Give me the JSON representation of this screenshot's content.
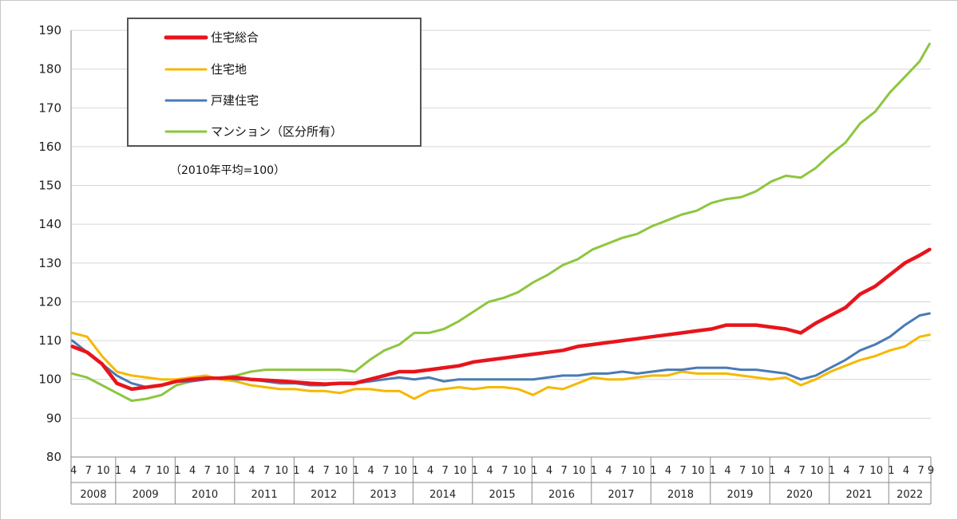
{
  "chart_data": {
    "type": "line",
    "note": "（2010年平均=100）",
    "ylim": [
      80,
      190
    ],
    "yticks": [
      80,
      90,
      100,
      110,
      120,
      130,
      140,
      150,
      160,
      170,
      180,
      190
    ],
    "x_month_labels": [
      "1",
      "4",
      "7",
      "10"
    ],
    "x_first_labels": [
      "4",
      "7",
      "10"
    ],
    "x_last_labels": [
      "1",
      "4",
      "7",
      "9"
    ],
    "years": [
      "2008",
      "2009",
      "2010",
      "2011",
      "2012",
      "2013",
      "2014",
      "2015",
      "2016",
      "2017",
      "2018",
      "2019",
      "2020",
      "2021",
      "2022"
    ],
    "x_start": "2008-04",
    "x_end": "2022-09",
    "grid": true,
    "legend_position": "top-left",
    "series": [
      {
        "name": "住宅総合",
        "color": "#e8141b",
        "points": [
          [
            "2008-04",
            108.5
          ],
          [
            "2008-07",
            107
          ],
          [
            "2008-10",
            104
          ],
          [
            "2009-01",
            99
          ],
          [
            "2009-04",
            97.5
          ],
          [
            "2009-07",
            98
          ],
          [
            "2009-10",
            98.5
          ],
          [
            "2010-01",
            99.5
          ],
          [
            "2010-04",
            100
          ],
          [
            "2010-07",
            100.3
          ],
          [
            "2010-10",
            100.3
          ],
          [
            "2011-01",
            100.5
          ],
          [
            "2011-04",
            100
          ],
          [
            "2011-07",
            99.8
          ],
          [
            "2011-10",
            99.6
          ],
          [
            "2012-01",
            99.3
          ],
          [
            "2012-04",
            99
          ],
          [
            "2012-07",
            98.8
          ],
          [
            "2012-10",
            99
          ],
          [
            "2013-01",
            99
          ],
          [
            "2013-04",
            100
          ],
          [
            "2013-07",
            101
          ],
          [
            "2013-10",
            102
          ],
          [
            "2014-01",
            102
          ],
          [
            "2014-04",
            102.5
          ],
          [
            "2014-07",
            103
          ],
          [
            "2014-10",
            103.5
          ],
          [
            "2015-01",
            104.5
          ],
          [
            "2015-04",
            105
          ],
          [
            "2015-07",
            105.5
          ],
          [
            "2015-10",
            106
          ],
          [
            "2016-01",
            106.5
          ],
          [
            "2016-04",
            107
          ],
          [
            "2016-07",
            107.5
          ],
          [
            "2016-10",
            108.5
          ],
          [
            "2017-01",
            109
          ],
          [
            "2017-04",
            109.5
          ],
          [
            "2017-07",
            110
          ],
          [
            "2017-10",
            110.5
          ],
          [
            "2018-01",
            111
          ],
          [
            "2018-04",
            111.5
          ],
          [
            "2018-07",
            112
          ],
          [
            "2018-10",
            112.5
          ],
          [
            "2019-01",
            113
          ],
          [
            "2019-04",
            114
          ],
          [
            "2019-07",
            114
          ],
          [
            "2019-10",
            114
          ],
          [
            "2020-01",
            113.5
          ],
          [
            "2020-04",
            113
          ],
          [
            "2020-07",
            112
          ],
          [
            "2020-10",
            114.5
          ],
          [
            "2021-01",
            116.5
          ],
          [
            "2021-04",
            118.5
          ],
          [
            "2021-07",
            122
          ],
          [
            "2021-10",
            124
          ],
          [
            "2022-01",
            127
          ],
          [
            "2022-04",
            130
          ],
          [
            "2022-07",
            132
          ],
          [
            "2022-09",
            133.5
          ]
        ]
      },
      {
        "name": "住宅地",
        "color": "#f5b800",
        "points": [
          [
            "2008-04",
            112
          ],
          [
            "2008-07",
            111
          ],
          [
            "2008-10",
            106
          ],
          [
            "2009-01",
            102
          ],
          [
            "2009-04",
            101
          ],
          [
            "2009-07",
            100.5
          ],
          [
            "2009-10",
            100
          ],
          [
            "2010-01",
            100
          ],
          [
            "2010-04",
            100.5
          ],
          [
            "2010-07",
            101
          ],
          [
            "2010-10",
            100
          ],
          [
            "2011-01",
            99.5
          ],
          [
            "2011-04",
            98.5
          ],
          [
            "2011-07",
            98
          ],
          [
            "2011-10",
            97.5
          ],
          [
            "2012-01",
            97.5
          ],
          [
            "2012-04",
            97
          ],
          [
            "2012-07",
            97
          ],
          [
            "2012-10",
            96.5
          ],
          [
            "2013-01",
            97.5
          ],
          [
            "2013-04",
            97.5
          ],
          [
            "2013-07",
            97
          ],
          [
            "2013-10",
            97
          ],
          [
            "2014-01",
            95
          ],
          [
            "2014-04",
            97
          ],
          [
            "2014-07",
            97.5
          ],
          [
            "2014-10",
            98
          ],
          [
            "2015-01",
            97.5
          ],
          [
            "2015-04",
            98
          ],
          [
            "2015-07",
            98
          ],
          [
            "2015-10",
            97.5
          ],
          [
            "2016-01",
            96
          ],
          [
            "2016-04",
            98
          ],
          [
            "2016-07",
            97.5
          ],
          [
            "2016-10",
            99
          ],
          [
            "2017-01",
            100.5
          ],
          [
            "2017-04",
            100
          ],
          [
            "2017-07",
            100
          ],
          [
            "2017-10",
            100.5
          ],
          [
            "2018-01",
            101
          ],
          [
            "2018-04",
            101
          ],
          [
            "2018-07",
            102
          ],
          [
            "2018-10",
            101.5
          ],
          [
            "2019-01",
            101.5
          ],
          [
            "2019-04",
            101.5
          ],
          [
            "2019-07",
            101
          ],
          [
            "2019-10",
            100.5
          ],
          [
            "2020-01",
            100
          ],
          [
            "2020-04",
            100.5
          ],
          [
            "2020-07",
            98.5
          ],
          [
            "2020-10",
            100
          ],
          [
            "2021-01",
            102
          ],
          [
            "2021-04",
            103.5
          ],
          [
            "2021-07",
            105
          ],
          [
            "2021-10",
            106
          ],
          [
            "2022-01",
            107.5
          ],
          [
            "2022-04",
            108.5
          ],
          [
            "2022-07",
            111
          ],
          [
            "2022-09",
            111.5
          ]
        ]
      },
      {
        "name": "戸建住宅",
        "color": "#4a7ab6",
        "points": [
          [
            "2008-04",
            110
          ],
          [
            "2008-07",
            107
          ],
          [
            "2008-10",
            104
          ],
          [
            "2009-01",
            101
          ],
          [
            "2009-04",
            99
          ],
          [
            "2009-07",
            98
          ],
          [
            "2009-10",
            98.5
          ],
          [
            "2010-01",
            99.5
          ],
          [
            "2010-04",
            99.5
          ],
          [
            "2010-07",
            100
          ],
          [
            "2010-10",
            100.5
          ],
          [
            "2011-01",
            100
          ],
          [
            "2011-04",
            100
          ],
          [
            "2011-07",
            99.5
          ],
          [
            "2011-10",
            99
          ],
          [
            "2012-01",
            99
          ],
          [
            "2012-04",
            98.5
          ],
          [
            "2012-07",
            98.5
          ],
          [
            "2012-10",
            99
          ],
          [
            "2013-01",
            99
          ],
          [
            "2013-04",
            99.5
          ],
          [
            "2013-07",
            100
          ],
          [
            "2013-10",
            100.5
          ],
          [
            "2014-01",
            100
          ],
          [
            "2014-04",
            100.5
          ],
          [
            "2014-07",
            99.5
          ],
          [
            "2014-10",
            100
          ],
          [
            "2015-01",
            100
          ],
          [
            "2015-04",
            100
          ],
          [
            "2015-07",
            100
          ],
          [
            "2015-10",
            100
          ],
          [
            "2016-01",
            100
          ],
          [
            "2016-04",
            100.5
          ],
          [
            "2016-07",
            101
          ],
          [
            "2016-10",
            101
          ],
          [
            "2017-01",
            101.5
          ],
          [
            "2017-04",
            101.5
          ],
          [
            "2017-07",
            102
          ],
          [
            "2017-10",
            101.5
          ],
          [
            "2018-01",
            102
          ],
          [
            "2018-04",
            102.5
          ],
          [
            "2018-07",
            102.5
          ],
          [
            "2018-10",
            103
          ],
          [
            "2019-01",
            103
          ],
          [
            "2019-04",
            103
          ],
          [
            "2019-07",
            102.5
          ],
          [
            "2019-10",
            102.5
          ],
          [
            "2020-01",
            102
          ],
          [
            "2020-04",
            101.5
          ],
          [
            "2020-07",
            100
          ],
          [
            "2020-10",
            101
          ],
          [
            "2021-01",
            103
          ],
          [
            "2021-04",
            105
          ],
          [
            "2021-07",
            107.5
          ],
          [
            "2021-10",
            109
          ],
          [
            "2022-01",
            111
          ],
          [
            "2022-04",
            114
          ],
          [
            "2022-07",
            116.5
          ],
          [
            "2022-09",
            117
          ]
        ]
      },
      {
        "name": "マンション（区分所有）",
        "color": "#8dc63f",
        "points": [
          [
            "2008-04",
            101.5
          ],
          [
            "2008-07",
            100.5
          ],
          [
            "2008-10",
            98.5
          ],
          [
            "2009-01",
            96.5
          ],
          [
            "2009-04",
            94.5
          ],
          [
            "2009-07",
            95
          ],
          [
            "2009-10",
            96
          ],
          [
            "2010-01",
            98.5
          ],
          [
            "2010-04",
            99.5
          ],
          [
            "2010-07",
            100
          ],
          [
            "2010-10",
            100.5
          ],
          [
            "2011-01",
            101
          ],
          [
            "2011-04",
            102
          ],
          [
            "2011-07",
            102.5
          ],
          [
            "2011-10",
            102.5
          ],
          [
            "2012-01",
            102.5
          ],
          [
            "2012-04",
            102.5
          ],
          [
            "2012-07",
            102.5
          ],
          [
            "2012-10",
            102.5
          ],
          [
            "2013-01",
            102
          ],
          [
            "2013-04",
            105
          ],
          [
            "2013-07",
            107.5
          ],
          [
            "2013-10",
            109
          ],
          [
            "2014-01",
            112
          ],
          [
            "2014-04",
            112
          ],
          [
            "2014-07",
            113
          ],
          [
            "2014-10",
            115
          ],
          [
            "2015-01",
            117.5
          ],
          [
            "2015-04",
            120
          ],
          [
            "2015-07",
            121
          ],
          [
            "2015-10",
            122.5
          ],
          [
            "2016-01",
            125
          ],
          [
            "2016-04",
            127
          ],
          [
            "2016-07",
            129.5
          ],
          [
            "2016-10",
            131
          ],
          [
            "2017-01",
            133.5
          ],
          [
            "2017-04",
            135
          ],
          [
            "2017-07",
            136.5
          ],
          [
            "2017-10",
            137.5
          ],
          [
            "2018-01",
            139.5
          ],
          [
            "2018-04",
            141
          ],
          [
            "2018-07",
            142.5
          ],
          [
            "2018-10",
            143.5
          ],
          [
            "2019-01",
            145.5
          ],
          [
            "2019-04",
            146.5
          ],
          [
            "2019-07",
            147
          ],
          [
            "2019-10",
            148.5
          ],
          [
            "2020-01",
            151
          ],
          [
            "2020-04",
            152.5
          ],
          [
            "2020-07",
            152
          ],
          [
            "2020-10",
            154.5
          ],
          [
            "2021-01",
            158
          ],
          [
            "2021-04",
            161
          ],
          [
            "2021-07",
            166
          ],
          [
            "2021-10",
            169
          ],
          [
            "2022-01",
            174
          ],
          [
            "2022-04",
            178
          ],
          [
            "2022-07",
            182
          ],
          [
            "2022-09",
            186.5
          ]
        ]
      }
    ]
  }
}
